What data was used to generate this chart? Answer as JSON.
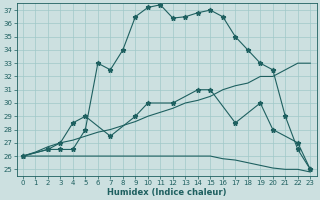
{
  "xlabel": "Humidex (Indice chaleur)",
  "bg_color": "#cce0e0",
  "grid_color": "#a0c8c8",
  "line_color": "#1e6060",
  "xlim": [
    -0.5,
    23.5
  ],
  "ylim": [
    24.5,
    37.5
  ],
  "xticks": [
    0,
    1,
    2,
    3,
    4,
    5,
    6,
    7,
    8,
    9,
    10,
    11,
    12,
    13,
    14,
    15,
    16,
    17,
    18,
    19,
    20,
    21,
    22,
    23
  ],
  "yticks": [
    25,
    26,
    27,
    28,
    29,
    30,
    31,
    32,
    33,
    34,
    35,
    36,
    37
  ],
  "line1_x": [
    0,
    1,
    2,
    3,
    4,
    5,
    6,
    7,
    8,
    9,
    10,
    11,
    12,
    13,
    14,
    15,
    16,
    17,
    18,
    19,
    20,
    21,
    22,
    23
  ],
  "line1_y": [
    26,
    26,
    26,
    26,
    26,
    26,
    26,
    26,
    26,
    26,
    26,
    26,
    26,
    26,
    26,
    26,
    25.8,
    25.7,
    25.5,
    25.3,
    25.1,
    25,
    25,
    24.8
  ],
  "line2_x": [
    0,
    1,
    2,
    3,
    4,
    5,
    6,
    7,
    8,
    9,
    10,
    11,
    12,
    13,
    14,
    15,
    16,
    17,
    18,
    19,
    20,
    21,
    22,
    23
  ],
  "line2_y": [
    26,
    26.3,
    26.7,
    27,
    27.2,
    27.5,
    27.8,
    28,
    28.3,
    28.6,
    29,
    29.3,
    29.6,
    30,
    30.2,
    30.5,
    31,
    31.3,
    31.5,
    32,
    32,
    32.5,
    33,
    33
  ],
  "line3_x": [
    0,
    2,
    3,
    4,
    5,
    7,
    9,
    10,
    12,
    14,
    15,
    17,
    19,
    20,
    22,
    23
  ],
  "line3_y": [
    26,
    26.5,
    27,
    28.5,
    29,
    27.5,
    29,
    30,
    30,
    31,
    31,
    28.5,
    30,
    28,
    27,
    25
  ],
  "line4_x": [
    0,
    2,
    3,
    4,
    5,
    6,
    7,
    8,
    9,
    10,
    11,
    12,
    13,
    14,
    15,
    16,
    17,
    18,
    19,
    20,
    21,
    22,
    23
  ],
  "line4_y": [
    26,
    26.5,
    26.5,
    26.5,
    28,
    33,
    32.5,
    34,
    36.5,
    37.2,
    37.4,
    36.4,
    36.5,
    36.8,
    37,
    36.5,
    35,
    34,
    33,
    32.5,
    29,
    26.5,
    25
  ],
  "line3_markers_x": [
    0,
    2,
    3,
    4,
    5,
    7,
    9,
    10,
    12,
    14,
    15,
    17,
    19,
    20,
    22,
    23
  ],
  "line3_markers_y": [
    26,
    26.5,
    27,
    28.5,
    29,
    27.5,
    29,
    30,
    30,
    31,
    31,
    28.5,
    30,
    28,
    27,
    25
  ],
  "line4_markers_x": [
    0,
    2,
    3,
    4,
    5,
    6,
    7,
    8,
    9,
    10,
    11,
    12,
    13,
    14,
    15,
    16,
    17,
    18,
    19,
    20,
    21,
    22,
    23
  ],
  "line4_markers_y": [
    26,
    26.5,
    26.5,
    26.5,
    28,
    33,
    32.5,
    34,
    36.5,
    37.2,
    37.4,
    36.4,
    36.5,
    36.8,
    37,
    36.5,
    35,
    34,
    33,
    32.5,
    29,
    26.5,
    25
  ]
}
